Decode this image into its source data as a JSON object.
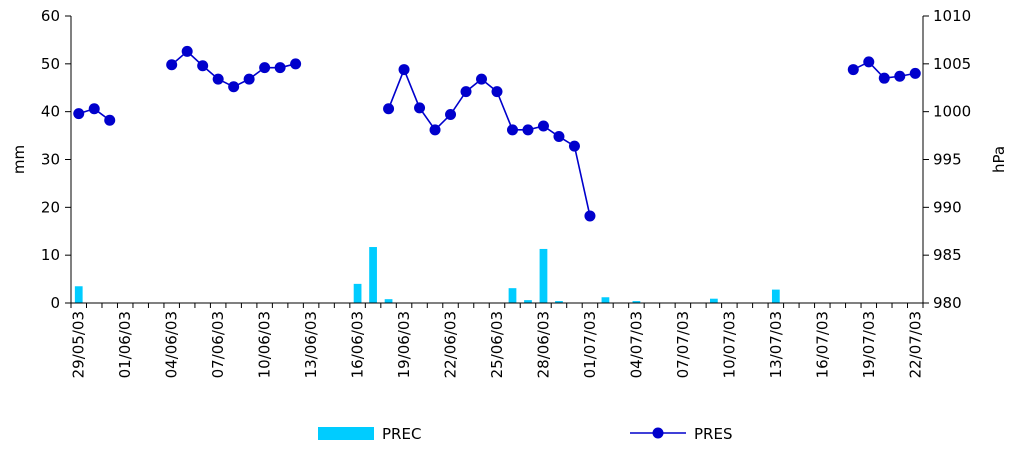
{
  "chart_data": {
    "type": "bar+line",
    "x_dates": [
      "29/05/03",
      "30/05/03",
      "31/05/03",
      "01/06/03",
      "02/06/03",
      "03/06/03",
      "04/06/03",
      "05/06/03",
      "06/06/03",
      "07/06/03",
      "08/06/03",
      "09/06/03",
      "10/06/03",
      "11/06/03",
      "12/06/03",
      "13/06/03",
      "14/06/03",
      "15/06/03",
      "16/06/03",
      "17/06/03",
      "18/06/03",
      "19/06/03",
      "20/06/03",
      "21/06/03",
      "22/06/03",
      "23/06/03",
      "24/06/03",
      "25/06/03",
      "26/06/03",
      "27/06/03",
      "28/06/03",
      "29/06/03",
      "30/06/03",
      "01/07/03",
      "02/07/03",
      "03/07/03",
      "04/07/03",
      "05/07/03",
      "06/07/03",
      "07/07/03",
      "08/07/03",
      "09/07/03",
      "10/07/03",
      "11/07/03",
      "12/07/03",
      "13/07/03",
      "14/07/03",
      "15/07/03",
      "16/07/03",
      "17/07/03",
      "18/07/03",
      "19/07/03",
      "20/07/03",
      "21/07/03",
      "22/07/03"
    ],
    "tick_labels": [
      "29/05/03",
      "01/06/03",
      "04/06/03",
      "07/06/03",
      "10/06/03",
      "13/06/03",
      "16/06/03",
      "19/06/03",
      "22/06/03",
      "25/06/03",
      "28/06/03",
      "01/07/03",
      "04/07/03",
      "07/07/03",
      "10/07/03",
      "13/07/03",
      "16/07/03",
      "19/07/03",
      "22/07/03"
    ],
    "left_axis": {
      "label": "mm",
      "range": [
        0,
        60
      ],
      "ticks": [
        0,
        10,
        20,
        30,
        40,
        50,
        60
      ]
    },
    "right_axis": {
      "label": "hPa",
      "range": [
        980,
        1010
      ],
      "ticks": [
        980,
        985,
        990,
        995,
        1000,
        1005,
        1010
      ]
    },
    "series": [
      {
        "name": "PREC",
        "type": "bar",
        "axis": "left",
        "color": "#00ccff",
        "values": [
          3.5,
          0,
          0,
          0,
          0,
          0,
          0,
          0,
          0,
          0,
          0,
          0,
          0,
          0,
          0,
          0,
          0,
          0,
          4.0,
          11.7,
          0.8,
          0,
          0,
          0,
          0,
          0,
          0,
          0,
          3.1,
          0.6,
          11.3,
          0.4,
          0,
          0,
          1.2,
          0,
          0.4,
          0,
          0,
          0,
          0,
          0.9,
          0,
          0,
          0,
          2.8,
          0,
          0,
          0,
          0,
          0,
          0,
          0,
          0,
          0
        ]
      },
      {
        "name": "PRES",
        "type": "line",
        "axis": "right",
        "color": "#0000cc",
        "values": [
          999.8,
          1000.3,
          999.1,
          null,
          null,
          null,
          1004.9,
          1006.3,
          1004.8,
          1003.4,
          1002.6,
          1003.4,
          1004.6,
          1004.6,
          1005.0,
          null,
          null,
          null,
          null,
          null,
          1000.3,
          1004.4,
          1000.4,
          998.1,
          999.7,
          1002.1,
          1003.4,
          1002.1,
          998.1,
          998.1,
          998.5,
          997.4,
          996.4,
          989.1,
          null,
          null,
          null,
          null,
          null,
          null,
          null,
          null,
          null,
          null,
          null,
          null,
          null,
          null,
          null,
          null,
          1004.4,
          1005.2,
          1003.5,
          1003.7,
          1004.0
        ]
      }
    ],
    "legend": {
      "placement": "bottom",
      "items": [
        {
          "label": "PREC",
          "symbol": "bar",
          "color": "#00ccff"
        },
        {
          "label": "PRES",
          "symbol": "line-marker",
          "color": "#0000cc"
        }
      ]
    },
    "grid": false
  }
}
